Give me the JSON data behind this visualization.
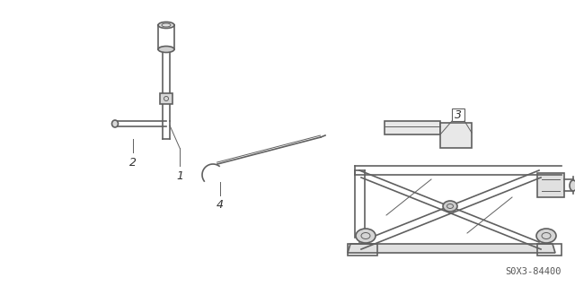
{
  "background_color": "#ffffff",
  "line_color": "#606060",
  "text_color": "#333333",
  "part1_label": "1",
  "part2_label": "2",
  "part3_label": "3",
  "part4_label": "4",
  "diagram_code": "S0X3-84400",
  "lw": 1.2,
  "lw_thin": 0.7
}
